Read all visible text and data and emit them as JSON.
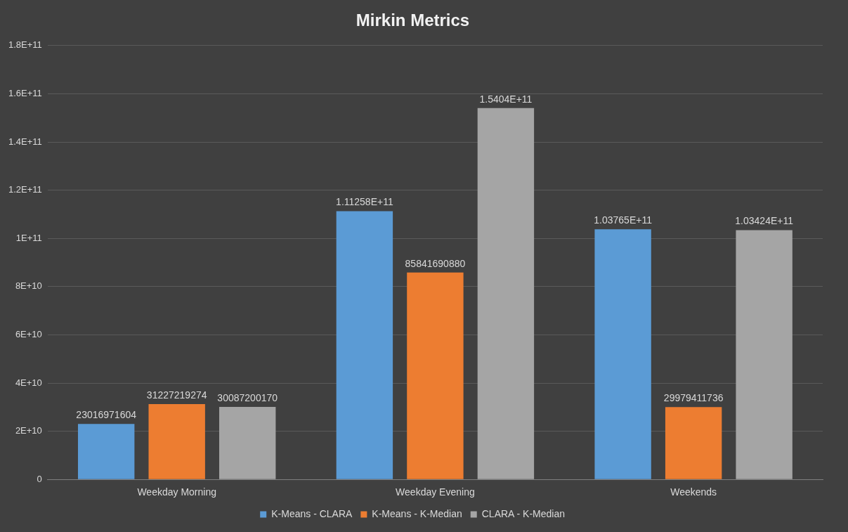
{
  "chart_data": {
    "type": "bar",
    "title": "Mirkin Metrics",
    "categories": [
      "Weekday Morning",
      "Weekday Evening",
      "Weekends"
    ],
    "series": [
      {
        "name": "K-Means - CLARA",
        "color": "#5b9bd5",
        "values": [
          23016971604,
          111258000000,
          103765000000
        ],
        "value_labels": [
          "23016971604",
          "1.11258E+11",
          "1.03765E+11"
        ]
      },
      {
        "name": "K-Means - K-Median",
        "color": "#ed7d31",
        "values": [
          31227219274,
          85841690880,
          29979411736
        ],
        "value_labels": [
          "31227219274",
          "85841690880",
          "29979411736"
        ]
      },
      {
        "name": "CLARA - K-Median",
        "color": "#a5a5a5",
        "values": [
          30087200170,
          154040000000,
          103424000000
        ],
        "value_labels": [
          "30087200170",
          "1.5404E+11",
          "1.03424E+11"
        ]
      }
    ],
    "ylim": [
      0,
      180000000000
    ],
    "yticks": [
      {
        "value": 0,
        "label": "0"
      },
      {
        "value": 20000000000,
        "label": "2E+10"
      },
      {
        "value": 40000000000,
        "label": "4E+10"
      },
      {
        "value": 60000000000,
        "label": "6E+10"
      },
      {
        "value": 80000000000,
        "label": "8E+10"
      },
      {
        "value": 100000000000,
        "label": "1E+11"
      },
      {
        "value": 120000000000,
        "label": "1.2E+11"
      },
      {
        "value": 140000000000,
        "label": "1.4E+11"
      },
      {
        "value": 160000000000,
        "label": "1.6E+11"
      },
      {
        "value": 180000000000,
        "label": "1.8E+11"
      }
    ],
    "grid": "y",
    "legend": "bottom"
  }
}
